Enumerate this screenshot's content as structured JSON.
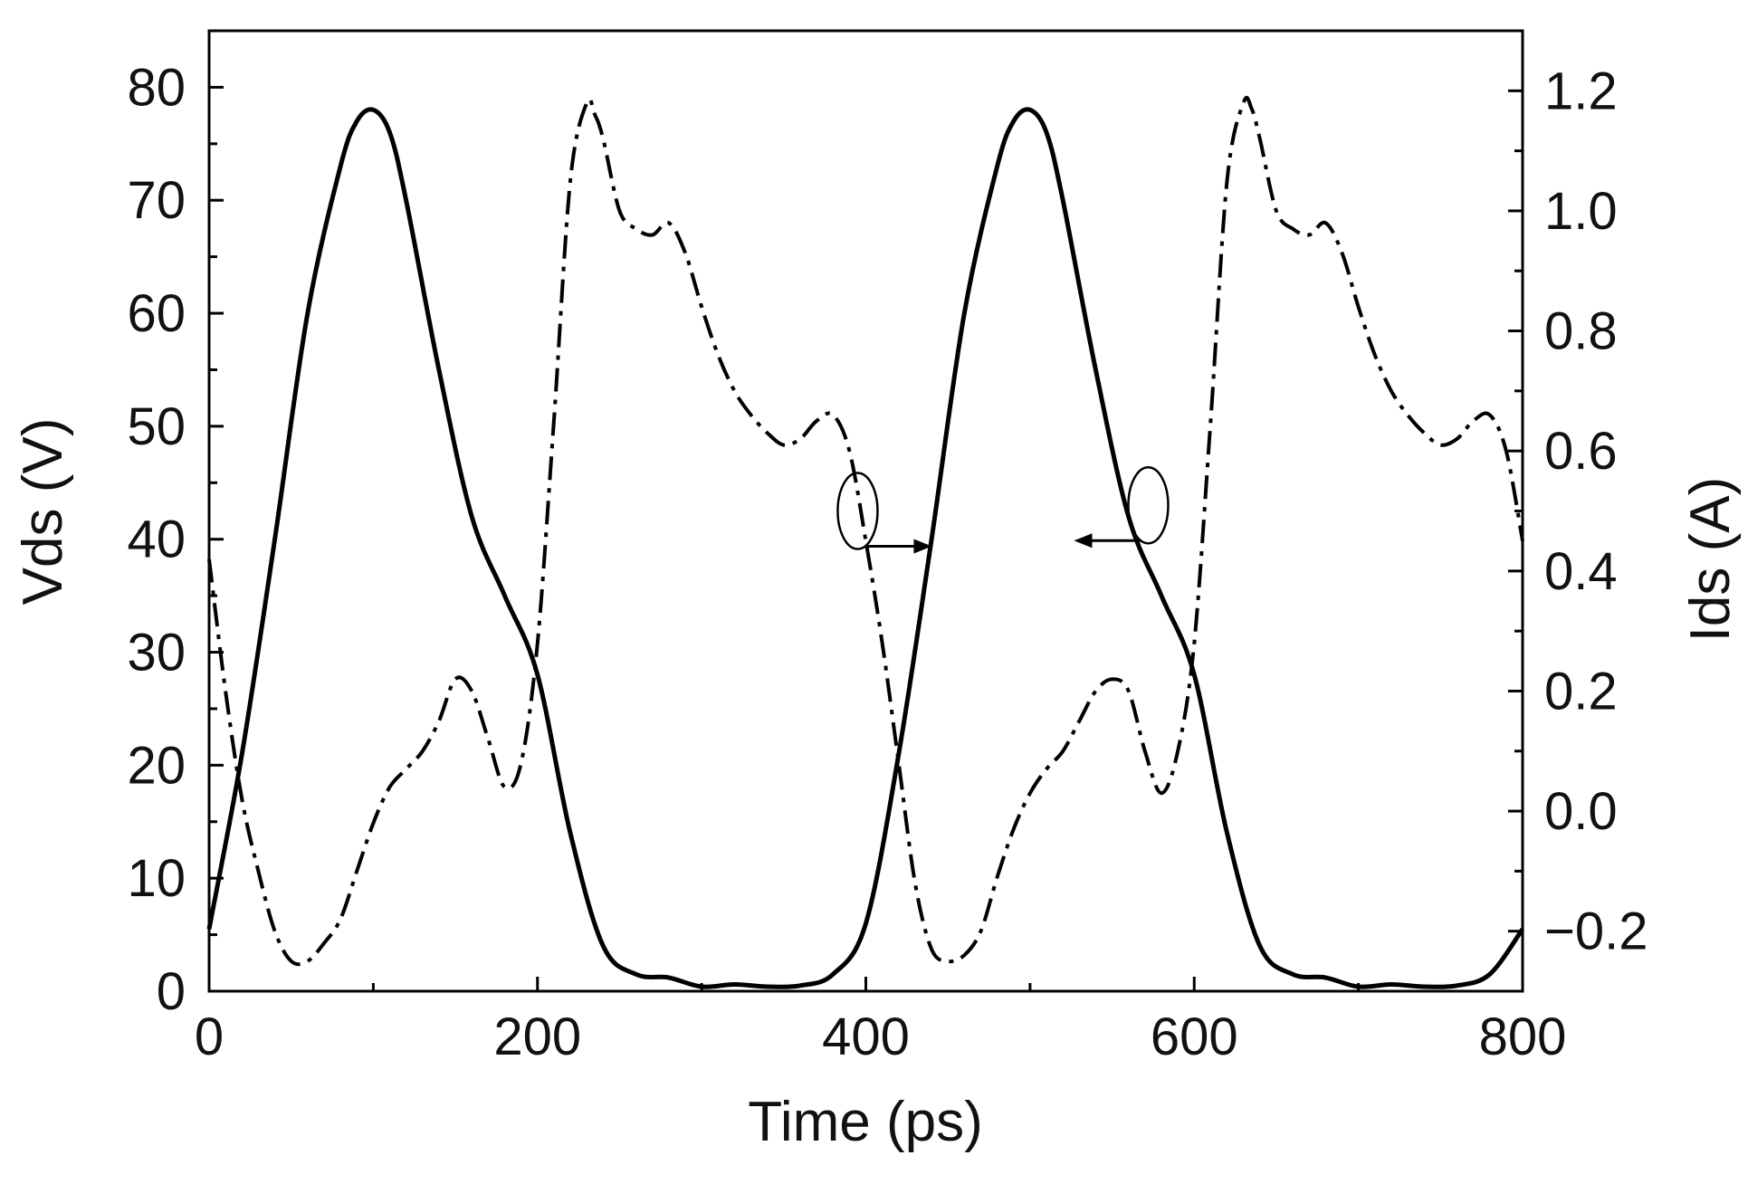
{
  "chart_data": {
    "type": "line",
    "xlabel": "Time (ps)",
    "ylabel": "Vds (V)",
    "y2label": "Ids (A)",
    "xlim": [
      0,
      800
    ],
    "ylim": [
      0,
      85
    ],
    "y2lim": [
      -0.3,
      1.3
    ],
    "xticks": [
      0,
      200,
      400,
      600,
      800
    ],
    "yticks": [
      0,
      10,
      20,
      30,
      40,
      50,
      60,
      70,
      80
    ],
    "y2ticks": [
      -0.2,
      0.0,
      0.2,
      0.4,
      0.6,
      0.8,
      1.0,
      1.2
    ],
    "xtick_labels": [
      "0",
      "200",
      "400",
      "600",
      "800"
    ],
    "ytick_labels": [
      "0",
      "10",
      "20",
      "30",
      "40",
      "50",
      "60",
      "70",
      "80"
    ],
    "y2tick_labels": [
      "−0.2",
      "0.0",
      "0.2",
      "0.4",
      "0.6",
      "0.8",
      "1.0",
      "1.2"
    ],
    "grid": false,
    "series": [
      {
        "axis": "left",
        "style": "solid",
        "color": "#000000",
        "x": [
          0,
          20,
          40,
          60,
          80,
          90,
          100,
          110,
          120,
          140,
          160,
          180,
          200,
          220,
          240,
          260,
          280,
          300,
          320,
          340,
          360,
          380,
          400,
          420,
          440,
          460,
          480,
          490,
          500,
          510,
          520,
          540,
          560,
          580,
          600,
          620,
          640,
          660,
          680,
          700,
          720,
          740,
          760,
          780,
          800
        ],
        "y": [
          5.5,
          21,
          40,
          60,
          73,
          77,
          78,
          76,
          70,
          55,
          42,
          35,
          28,
          14,
          4,
          1.5,
          1.2,
          0.4,
          0.6,
          0.4,
          0.5,
          1.5,
          6,
          21,
          40,
          60,
          73,
          77,
          78,
          76,
          70,
          55,
          42,
          35,
          28,
          14,
          4,
          1.5,
          1.2,
          0.4,
          0.6,
          0.4,
          0.5,
          1.5,
          5.5
        ]
      },
      {
        "axis": "right",
        "style": "dashdot",
        "color": "#000000",
        "x": [
          0,
          10,
          20,
          30,
          40,
          50,
          60,
          70,
          80,
          90,
          100,
          110,
          120,
          130,
          140,
          150,
          160,
          170,
          180,
          190,
          200,
          210,
          220,
          230,
          235,
          240,
          250,
          260,
          270,
          280,
          290,
          300,
          310,
          320,
          330,
          340,
          350,
          360,
          370,
          380,
          390,
          400,
          410,
          420,
          430,
          440,
          450,
          460,
          470,
          480,
          490,
          500,
          510,
          520,
          530,
          540,
          550,
          560,
          570,
          580,
          590,
          600,
          610,
          620,
          630,
          635,
          640,
          650,
          660,
          670,
          680,
          690,
          700,
          710,
          720,
          730,
          740,
          750,
          760,
          770,
          780,
          790,
          800
        ],
        "y": [
          0.42,
          0.2,
          0.02,
          -0.1,
          -0.2,
          -0.25,
          -0.25,
          -0.22,
          -0.18,
          -0.1,
          -0.02,
          0.04,
          0.07,
          0.1,
          0.15,
          0.22,
          0.2,
          0.12,
          0.04,
          0.08,
          0.28,
          0.65,
          1.05,
          1.18,
          1.16,
          1.12,
          1.0,
          0.97,
          0.96,
          0.98,
          0.93,
          0.84,
          0.76,
          0.7,
          0.66,
          0.63,
          0.61,
          0.62,
          0.65,
          0.66,
          0.6,
          0.45,
          0.28,
          0.08,
          -0.12,
          -0.23,
          -0.25,
          -0.24,
          -0.2,
          -0.11,
          -0.03,
          0.03,
          0.07,
          0.1,
          0.15,
          0.2,
          0.22,
          0.2,
          0.1,
          0.03,
          0.1,
          0.28,
          0.65,
          1.05,
          1.18,
          1.17,
          1.12,
          1.0,
          0.97,
          0.96,
          0.98,
          0.93,
          0.84,
          0.76,
          0.7,
          0.66,
          0.63,
          0.61,
          0.62,
          0.65,
          0.66,
          0.6,
          0.45
        ]
      }
    ],
    "annotations": [
      {
        "type": "ellipse-arrow",
        "x": 395,
        "y": 42.5,
        "axis": "left",
        "arrow": "right"
      },
      {
        "type": "ellipse-arrow",
        "x": 572,
        "y": 43,
        "axis": "left",
        "arrow": "left"
      }
    ]
  }
}
